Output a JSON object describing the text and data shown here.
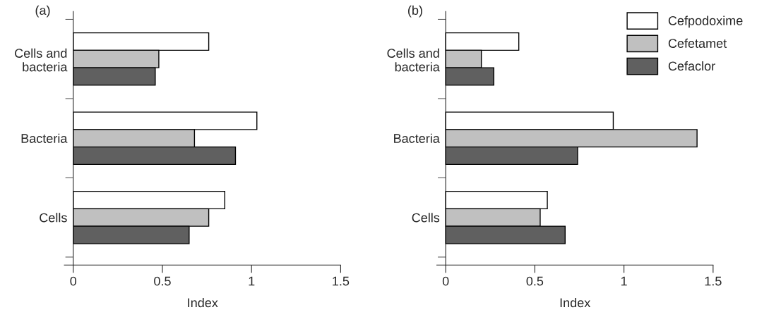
{
  "chart_data": [
    {
      "type": "bar",
      "orientation": "horizontal",
      "title": "(a)",
      "xlabel": "Index",
      "categories": [
        "Cells and\nbacteria",
        "Bacteria",
        "Cells"
      ],
      "xlim": [
        -0.05,
        1.5
      ],
      "xticks": [
        0,
        0.5,
        1,
        1.5
      ],
      "grid": false,
      "legend": false,
      "series": [
        {
          "color": "#ffffff",
          "values": [
            0.76,
            1.03,
            0.85
          ]
        },
        {
          "color": "#c0c0c0",
          "values": [
            0.48,
            0.68,
            0.76
          ]
        },
        {
          "color": "#606060",
          "values": [
            0.46,
            0.91,
            0.65
          ]
        }
      ]
    },
    {
      "type": "bar",
      "orientation": "horizontal",
      "title": "(b)",
      "xlabel": "Index",
      "categories": [
        "Cells and\nbacteria",
        "Bacteria",
        "Cells"
      ],
      "xlim": [
        -0.05,
        1.5
      ],
      "xticks": [
        0,
        0.5,
        1,
        1.5
      ],
      "grid": false,
      "legend": "top right",
      "series": [
        {
          "name": "Cefpodoxime",
          "color": "#ffffff",
          "values": [
            0.41,
            0.94,
            0.57
          ]
        },
        {
          "name": "Cefetamet",
          "color": "#c0c0c0",
          "values": [
            0.2,
            1.41,
            0.53
          ]
        },
        {
          "name": "Cefaclor",
          "color": "#606060",
          "values": [
            0.27,
            0.74,
            0.67
          ]
        }
      ]
    }
  ]
}
